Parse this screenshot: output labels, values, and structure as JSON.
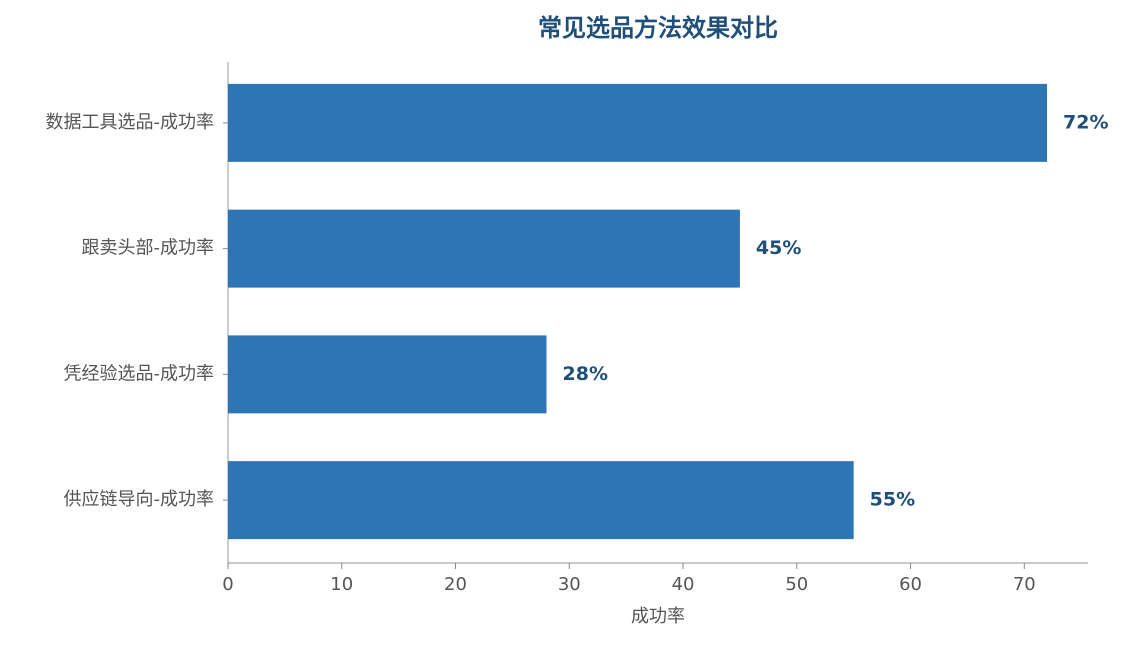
{
  "chart_data": {
    "type": "bar",
    "orientation": "horizontal",
    "title": "常见选品方法效果对比",
    "x_label": "成功率",
    "categories": [
      "数据工具选品-成功率",
      "跟卖头部-成功率",
      "凭经验选品-成功率",
      "供应链导向-成功率"
    ],
    "values": [
      72,
      45,
      28,
      55
    ],
    "value_labels": [
      "72%",
      "45%",
      "28%",
      "55%"
    ],
    "color": "#2e75b6",
    "xlim": [
      0,
      75.6
    ],
    "xticks": [
      0,
      10,
      20,
      30,
      40,
      50,
      60,
      70
    ],
    "grid": false
  }
}
